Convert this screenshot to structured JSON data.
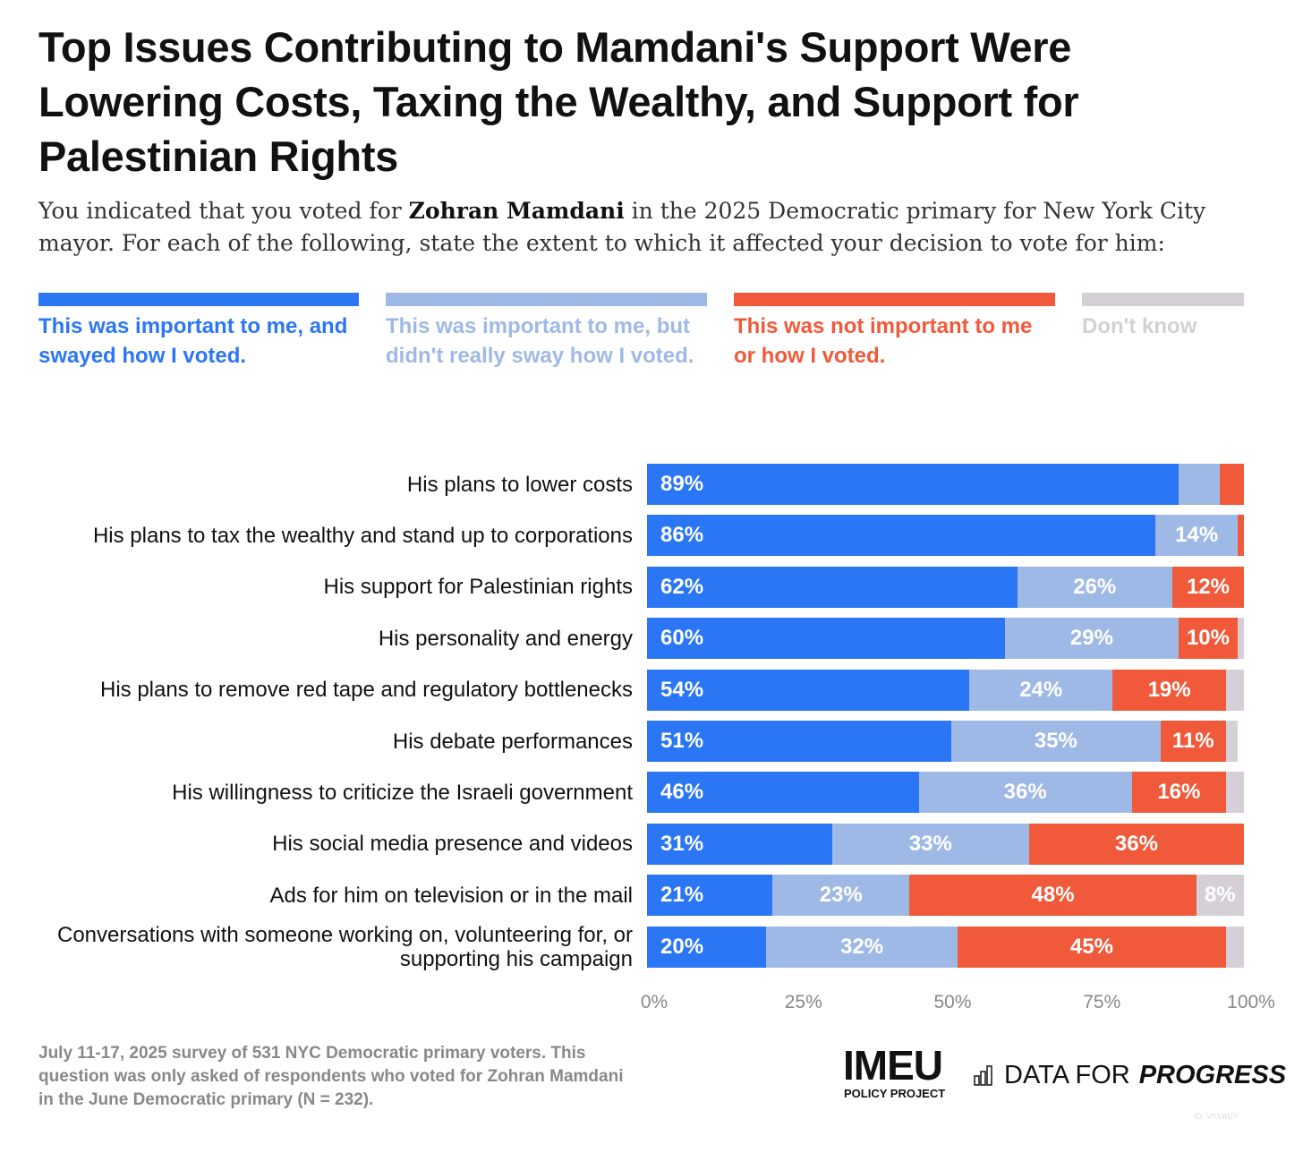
{
  "chart_data": {
    "type": "bar",
    "orientation": "horizontal-stacked",
    "title": "Top Issues Contributing to Mamdani's Support Were Lowering Costs, Taxing the Wealthy, and Support for Palestinian Rights",
    "subtitle_pre": "You indicated that you voted for ",
    "subtitle_bold": "Zohran Mamdani",
    "subtitle_post": " in the 2025 Democratic primary for New York City mayor. For each of the following, state the extent to which it affected your decision to vote for him:",
    "categories": [
      "His plans to lower costs",
      "His plans to tax the wealthy and stand up to corporations",
      "His support for Palestinian rights",
      "His personality and energy",
      "His plans to remove red tape and regulatory bottlenecks",
      "His debate performances",
      "His willingness to criticize the Israeli government",
      "His social media presence and videos",
      "Ads for him on television or in the mail",
      "Conversations with someone working on, volunteering for, or supporting his campaign"
    ],
    "series": [
      {
        "name": "This was important to me, and swayed how I voted.",
        "color": "#2b76f5",
        "values": [
          89,
          86,
          62,
          60,
          54,
          51,
          46,
          31,
          21,
          20
        ]
      },
      {
        "name": "This was important to me, but didn't really sway how I voted.",
        "color": "#9fb9e6",
        "values": [
          7,
          14,
          26,
          29,
          24,
          35,
          36,
          33,
          23,
          32
        ]
      },
      {
        "name": "This was not important to me or how I voted.",
        "color": "#f05a3a",
        "values": [
          4,
          1,
          12,
          10,
          19,
          11,
          16,
          36,
          48,
          45
        ]
      },
      {
        "name": "Don't know",
        "color": "#d4d0d6",
        "values": [
          0,
          0,
          0,
          1,
          3,
          2,
          3,
          0,
          8,
          3
        ]
      }
    ],
    "xlim": [
      0,
      100
    ],
    "xticks": [
      "0%",
      "25%",
      "50%",
      "75%",
      "100%"
    ],
    "label_min": 8
  },
  "footer": {
    "note": "July 11-17, 2025 survey of 531 NYC Democratic primary voters. This question was only asked of respondents who voted for Zohran Mamdani in the June Democratic primary (N = 232).",
    "logo1": "IMEU",
    "logo1_sub": "POLICY PROJECT",
    "logo2_a": "DATA FOR",
    "logo2_b": "PROGRESS",
    "watermark": "ID: VKVAUY"
  }
}
